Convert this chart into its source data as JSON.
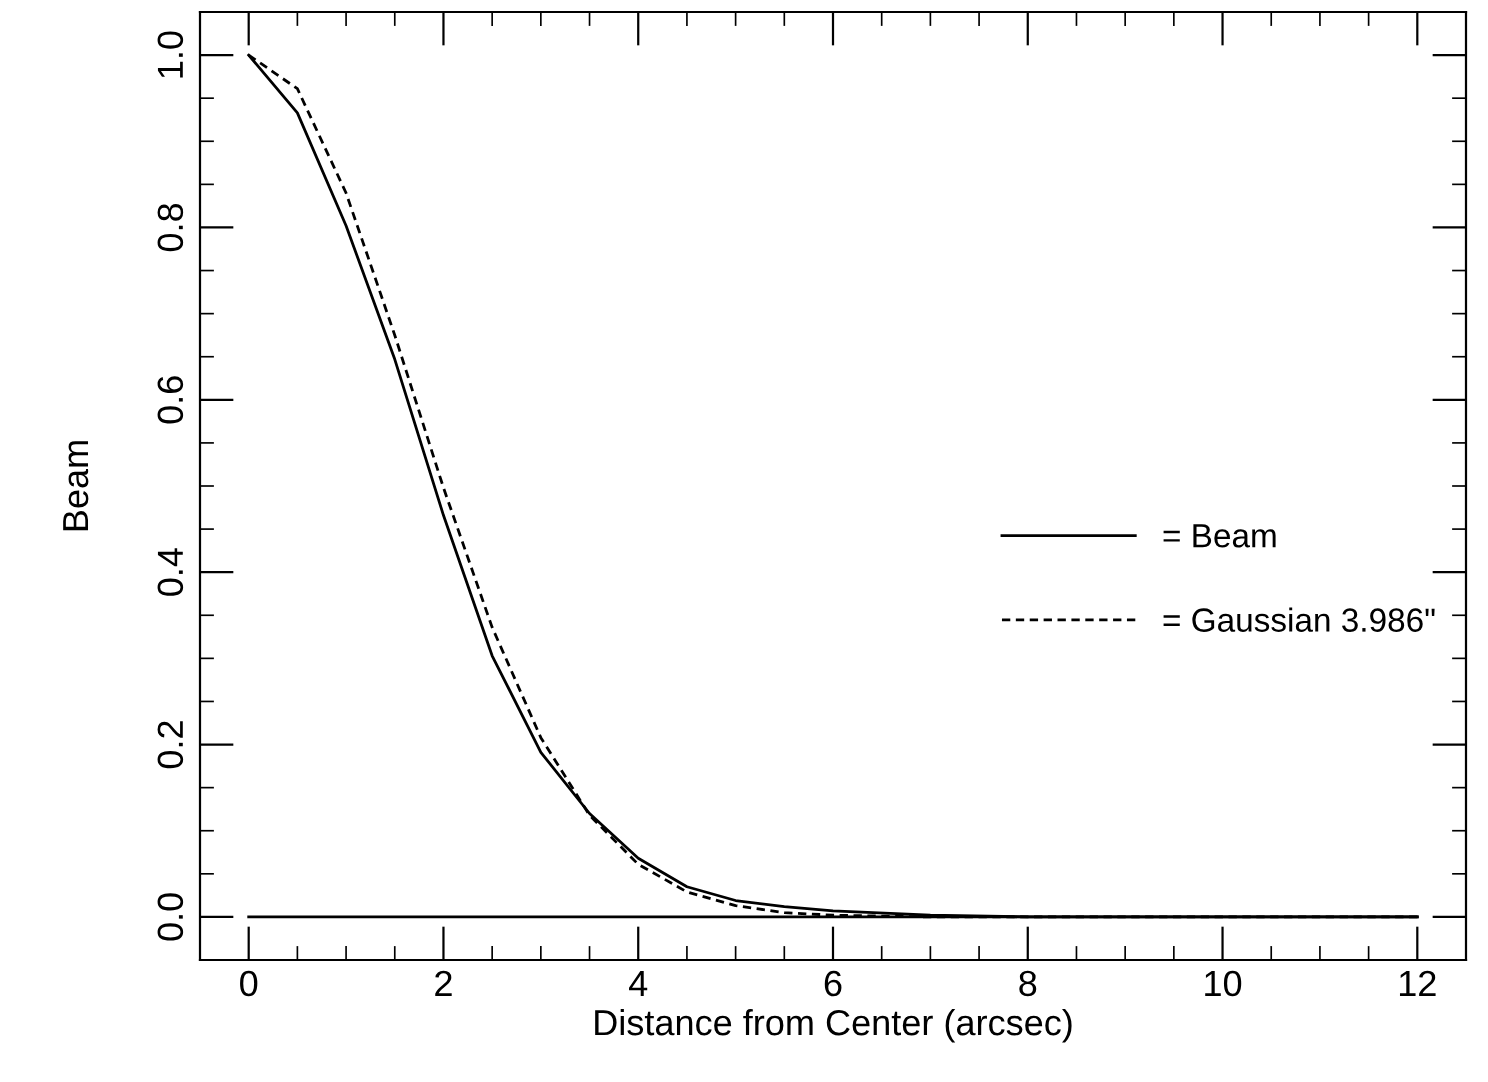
{
  "chart_data": {
    "type": "line",
    "xlabel": "Distance from Center (arcsec)",
    "ylabel": "Beam",
    "x": [
      0,
      0.5,
      1,
      1.5,
      2,
      2.5,
      3,
      3.5,
      4,
      4.5,
      5,
      5.5,
      6,
      7,
      8,
      9,
      10,
      11,
      12
    ],
    "series": [
      {
        "name": "= Beam",
        "color": "#000000",
        "line_style": "solid",
        "values": [
          1.0,
          0.933,
          0.802,
          0.647,
          0.466,
          0.303,
          0.191,
          0.12,
          0.068,
          0.035,
          0.019,
          0.012,
          0.007,
          0.002,
          0.0,
          0.0,
          0.0,
          0.0,
          0.0
        ]
      },
      {
        "name": "= Gaussian 3.986\"",
        "color": "#000000",
        "line_style": "dashed",
        "values": [
          1.0,
          0.961,
          0.84,
          0.675,
          0.498,
          0.336,
          0.208,
          0.118,
          0.061,
          0.029,
          0.013,
          0.005,
          0.002,
          0.0,
          0.0,
          0.0,
          0.0,
          0.0,
          0.0
        ]
      },
      {
        "color": "#000000",
        "line_style": "solid",
        "x": [
          0,
          12
        ],
        "values": [
          0,
          0
        ]
      }
    ],
    "xlim": [
      -0.5,
      12.5
    ],
    "ylim": [
      -0.05,
      1.05
    ],
    "xticks": [
      0,
      2,
      4,
      6,
      8,
      10,
      12
    ],
    "yticks": [
      {
        "value": 0,
        "label": "0.0"
      },
      0.2,
      0.4,
      0.6,
      0.8,
      {
        "value": 1,
        "label": "1.0"
      }
    ],
    "grid": false,
    "legend": "center right",
    "marker": "none"
  }
}
